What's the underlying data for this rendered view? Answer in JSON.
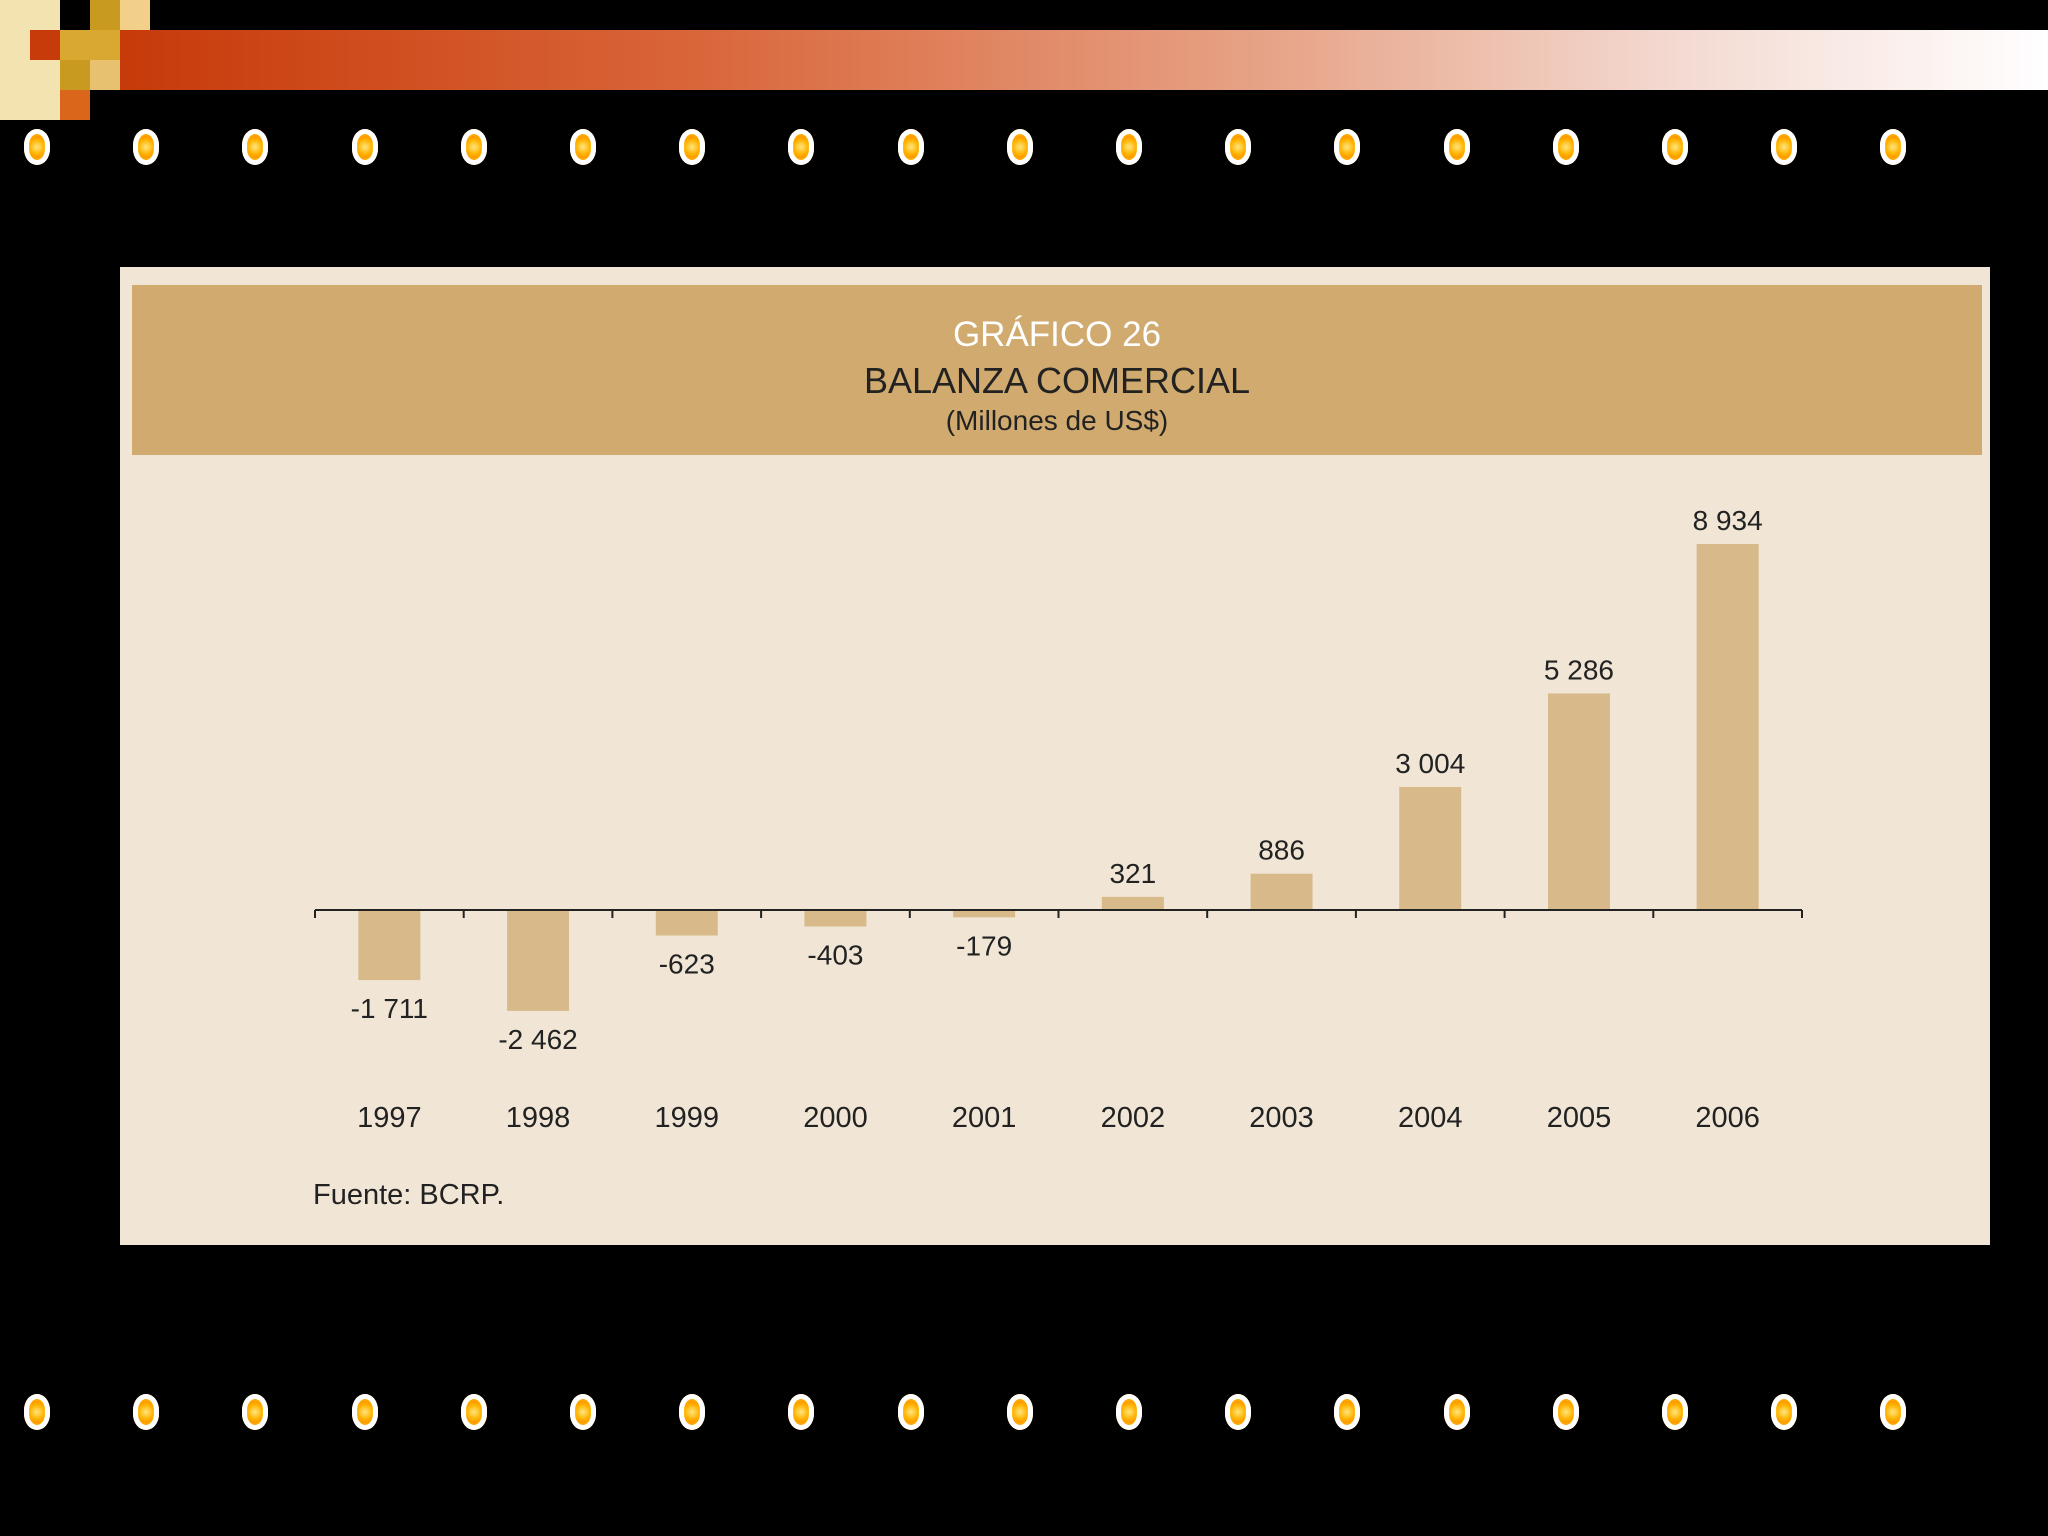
{
  "theme": {
    "background": "#000000",
    "panel": "#f1e6d6",
    "header": "#d0aa6e",
    "bar": "#d7b98a",
    "accent": "#c73a0a",
    "dot": "#ffb000"
  },
  "chart_header": {
    "graph_number": "GRÁFICO 26",
    "title": "BALANZA COMERCIAL",
    "subtitle": "(Millones de US$)"
  },
  "source_note": "Fuente: BCRP.",
  "chart_data": {
    "type": "bar",
    "title": "BALANZA COMERCIAL",
    "subtitle": "(Millones de US$)",
    "categories": [
      "1997",
      "1998",
      "1999",
      "2000",
      "2001",
      "2002",
      "2003",
      "2004",
      "2005",
      "2006"
    ],
    "values": [
      -1711,
      -2462,
      -623,
      -403,
      -179,
      321,
      886,
      3004,
      5286,
      8934
    ],
    "value_labels": [
      "-1 711",
      "-2 462",
      "-623",
      "-403",
      "-179",
      "321",
      "886",
      "3 004",
      "5 286",
      "8 934"
    ],
    "xlabel": "",
    "ylabel": "",
    "ylim": [
      -3000,
      10000
    ],
    "grid": false,
    "legend": "none"
  }
}
